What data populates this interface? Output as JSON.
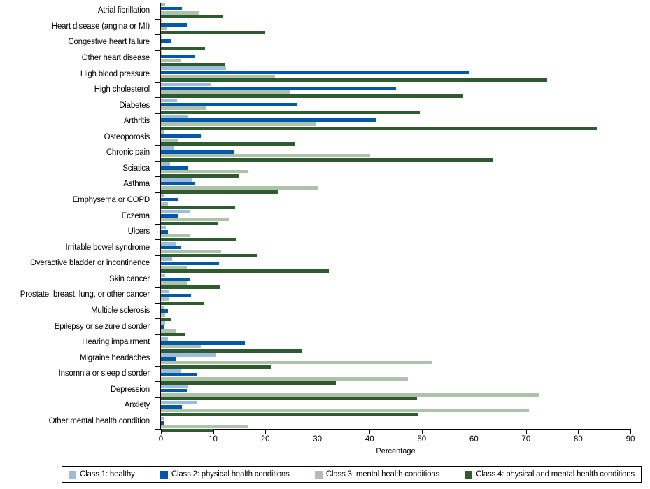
{
  "chart_data": {
    "type": "bar",
    "orientation": "horizontal-grouped",
    "title": "",
    "xlabel": "Percentage",
    "ylabel": "",
    "xlim": [
      0,
      90
    ],
    "x_ticks": [
      0,
      10,
      20,
      30,
      40,
      50,
      60,
      70,
      80,
      90
    ],
    "grid": false,
    "legend_position": "bottom-boxed",
    "categories": [
      "Atrial fibrillation",
      "Heart disease (angina or MI)",
      "Congestive heart failure",
      "Other heart disease",
      "High blood pressure",
      "High cholesterol",
      "Diabetes",
      "Arthritis",
      "Osteoporosis",
      "Chronic pain",
      "Sciatica",
      "Asthma",
      "Emphysema or COPD",
      "Eczema",
      "Ulcers",
      "Irritable bowel syndrome",
      "Overactive bladder or incontinence",
      "Skin cancer",
      "Prostate, breast, lung, or other cancer",
      "Multiple sclerosis",
      "Epilepsy or seizure disorder",
      "Hearing impairment",
      "Migraine headaches",
      "Insomnia or sleep disorder",
      "Depression",
      "Anxiety",
      "Other mental health condition"
    ],
    "series": [
      {
        "name": "Class 1: healthy",
        "color": "#9CBCDE",
        "values": [
          0.8,
          0.2,
          0.1,
          0.3,
          12.5,
          9.5,
          3.1,
          5.2,
          0.6,
          2.5,
          1.7,
          6.0,
          0.6,
          5.5,
          1.0,
          2.9,
          2.1,
          0.8,
          1.6,
          0.5,
          0.8,
          1.4,
          10.6,
          3.9,
          5.2,
          6.8,
          0.5
        ]
      },
      {
        "name": "Class 2: physical health conditions",
        "color": "#0059A8",
        "values": [
          4.0,
          5.0,
          2.0,
          6.6,
          59.0,
          45.0,
          26.0,
          41.2,
          7.6,
          14.1,
          5.1,
          6.5,
          3.4,
          3.2,
          1.3,
          3.7,
          11.1,
          5.6,
          5.8,
          1.4,
          0.5,
          16.1,
          2.8,
          6.8,
          4.9,
          4.0,
          0.7
        ]
      },
      {
        "name": "Class 3: mental health conditions",
        "color": "#AEC2A9",
        "values": [
          7.2,
          1.2,
          0.2,
          3.8,
          21.8,
          24.7,
          8.7,
          29.7,
          3.3,
          40.1,
          16.7,
          30.0,
          1.3,
          13.1,
          5.6,
          11.6,
          5.0,
          5.0,
          1.6,
          0.8,
          2.8,
          7.7,
          52.0,
          47.3,
          72.4,
          70.5,
          16.7
        ]
      },
      {
        "name": "Class 4: physical and mental health conditions",
        "color": "#2E5C30",
        "values": [
          12.0,
          20.0,
          8.5,
          12.4,
          74.0,
          58.0,
          49.6,
          83.5,
          25.8,
          63.7,
          14.9,
          22.4,
          14.2,
          11.0,
          14.3,
          18.4,
          32.2,
          11.3,
          8.3,
          2.0,
          4.5,
          27.0,
          21.2,
          33.5,
          49.1,
          49.3,
          10.1
        ]
      }
    ]
  }
}
